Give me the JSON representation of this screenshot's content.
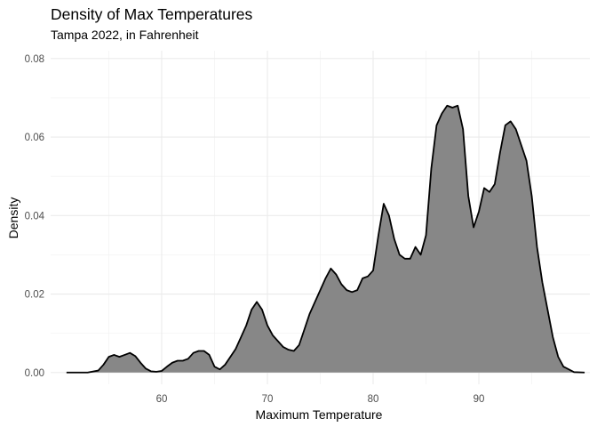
{
  "chart_data": {
    "type": "area",
    "title": "Density of Max Temperatures",
    "subtitle": "Tampa 2022, in Fahrenheit",
    "xlabel": "Maximum Temperature",
    "ylabel": "Density",
    "xlim": [
      49.5,
      100.5
    ],
    "ylim": [
      -0.003,
      0.082
    ],
    "x_ticks": [
      60,
      70,
      80,
      90
    ],
    "y_ticks": [
      0.0,
      0.02,
      0.04,
      0.06,
      0.08
    ],
    "x_tick_labels": [
      "60",
      "70",
      "80",
      "90"
    ],
    "y_tick_labels": [
      "0.00",
      "0.02",
      "0.04",
      "0.06",
      "0.08"
    ],
    "grid": true,
    "fill_color": "#878787",
    "line_color": "#000000",
    "series": [
      {
        "x": [
          51,
          53,
          54,
          54.5,
          55,
          55.5,
          56,
          56.5,
          57,
          57.5,
          58,
          58.5,
          59,
          59.5,
          60,
          60.5,
          61,
          61.5,
          62,
          62.5,
          63,
          63.5,
          64,
          64.5,
          65,
          65.5,
          66,
          66.5,
          67,
          67.5,
          68,
          68.5,
          69,
          69.5,
          70,
          70.5,
          71,
          71.5,
          72,
          72.5,
          73,
          73.5,
          74,
          74.5,
          75,
          75.5,
          76,
          76.5,
          77,
          77.5,
          78,
          78.5,
          79,
          79.5,
          80,
          80.5,
          81,
          81.5,
          82,
          82.5,
          83,
          83.5,
          84,
          84.5,
          85,
          85.5,
          86,
          86.5,
          87,
          87.5,
          88,
          88.5,
          89,
          89.5,
          90,
          90.5,
          91,
          91.5,
          92,
          92.5,
          93,
          93.5,
          94,
          94.5,
          95,
          95.5,
          96,
          96.5,
          97,
          97.5,
          98,
          99,
          100
        ],
        "y": [
          0.0,
          0.0,
          0.0005,
          0.002,
          0.004,
          0.0045,
          0.004,
          0.0045,
          0.005,
          0.0042,
          0.0025,
          0.001,
          0.0003,
          0.0002,
          0.0004,
          0.0015,
          0.0025,
          0.003,
          0.003,
          0.0035,
          0.005,
          0.0055,
          0.0055,
          0.0045,
          0.0015,
          0.0008,
          0.002,
          0.004,
          0.006,
          0.009,
          0.012,
          0.016,
          0.018,
          0.016,
          0.012,
          0.0095,
          0.008,
          0.0065,
          0.0058,
          0.0055,
          0.007,
          0.011,
          0.015,
          0.018,
          0.021,
          0.024,
          0.0265,
          0.025,
          0.0225,
          0.021,
          0.0205,
          0.021,
          0.024,
          0.0245,
          0.026,
          0.035,
          0.043,
          0.04,
          0.034,
          0.03,
          0.029,
          0.029,
          0.032,
          0.03,
          0.035,
          0.052,
          0.063,
          0.066,
          0.068,
          0.0675,
          0.068,
          0.062,
          0.045,
          0.037,
          0.041,
          0.047,
          0.046,
          0.048,
          0.056,
          0.063,
          0.064,
          0.062,
          0.058,
          0.054,
          0.045,
          0.032,
          0.023,
          0.016,
          0.009,
          0.004,
          0.0015,
          0.0001,
          0.0
        ]
      }
    ]
  }
}
